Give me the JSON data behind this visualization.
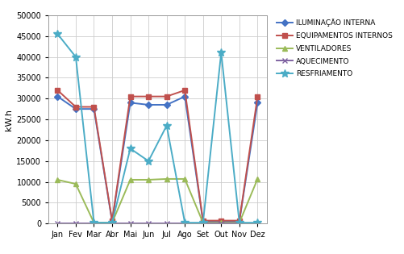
{
  "months": [
    "Jan",
    "Fev",
    "Mar",
    "Abr",
    "Mai",
    "Jun",
    "Jul",
    "Ago",
    "Set",
    "Out",
    "Nov",
    "Dez"
  ],
  "series": {
    "ILUMINAÇÃO INTERNA": [
      30500,
      27500,
      27500,
      500,
      29000,
      28500,
      28500,
      30500,
      500,
      500,
      500,
      29000
    ],
    "EQUIPAMENTOS INTERNOS": [
      32000,
      28000,
      28000,
      700,
      30500,
      30500,
      30500,
      32000,
      700,
      700,
      700,
      30500
    ],
    "VENTILADORES": [
      10500,
      9500,
      200,
      200,
      10500,
      10500,
      10700,
      10700,
      200,
      200,
      200,
      10700
    ],
    "AQUECIMENTO": [
      100,
      100,
      100,
      100,
      100,
      100,
      100,
      100,
      100,
      100,
      100,
      100
    ],
    "RESFRIAMENTO": [
      45500,
      40000,
      200,
      200,
      18000,
      15000,
      23500,
      200,
      200,
      41000,
      200,
      200
    ]
  },
  "colors": {
    "ILUMINAÇÃO INTERNA": "#4472C4",
    "EQUIPAMENTOS INTERNOS": "#C0504D",
    "VENTILADORES": "#9BBB59",
    "AQUECIMENTO": "#8064A2",
    "RESFRIAMENTO": "#4BACC6"
  },
  "markers": {
    "ILUMINAÇÃO INTERNA": "D",
    "EQUIPAMENTOS INTERNOS": "s",
    "VENTILADORES": "^",
    "AQUECIMENTO": "x",
    "RESFRIAMENTO": "*"
  },
  "ylabel": "kW.h",
  "ylim": [
    0,
    50000
  ],
  "yticks": [
    0,
    5000,
    10000,
    15000,
    20000,
    25000,
    30000,
    35000,
    40000,
    45000,
    50000
  ],
  "background_color": "#ffffff",
  "grid_color": "#cccccc",
  "legend_order": [
    "ILUMINAÇÃO INTERNA",
    "EQUIPAMENTOS INTERNOS",
    "VENTILADORES",
    "AQUECIMENTO",
    "RESFRIAMENTO"
  ]
}
